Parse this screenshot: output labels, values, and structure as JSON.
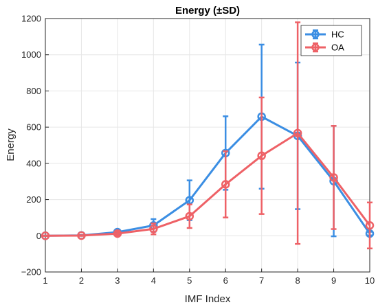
{
  "chart_data": {
    "type": "line",
    "title": "Energy (±SD)",
    "xlabel": "IMF Index",
    "ylabel": "Energy",
    "xlim": [
      1,
      10
    ],
    "ylim": [
      -200,
      1200
    ],
    "x_ticks": [
      "1",
      "2",
      "3",
      "4",
      "5",
      "6",
      "7",
      "8",
      "9",
      "10"
    ],
    "y_ticks": [
      "−200",
      "0",
      "200",
      "400",
      "600",
      "800",
      "1000",
      "1200"
    ],
    "grid": true,
    "legend_position": "top-right",
    "x": [
      1,
      2,
      3,
      4,
      5,
      6,
      7,
      8,
      9,
      10
    ],
    "series": [
      {
        "name": "HC",
        "color": "#3b8ee3",
        "values": [
          0,
          2,
          20,
          57,
          196,
          457,
          658,
          552,
          302,
          12
        ],
        "sd": [
          1,
          2,
          12,
          35,
          110,
          203,
          398,
          405,
          305,
          10
        ]
      },
      {
        "name": "OA",
        "color": "#ee6166",
        "values": [
          0,
          1,
          12,
          38,
          108,
          284,
          442,
          567,
          322,
          57
        ],
        "sd": [
          1,
          2,
          10,
          30,
          65,
          183,
          322,
          612,
          285,
          127
        ]
      }
    ]
  }
}
